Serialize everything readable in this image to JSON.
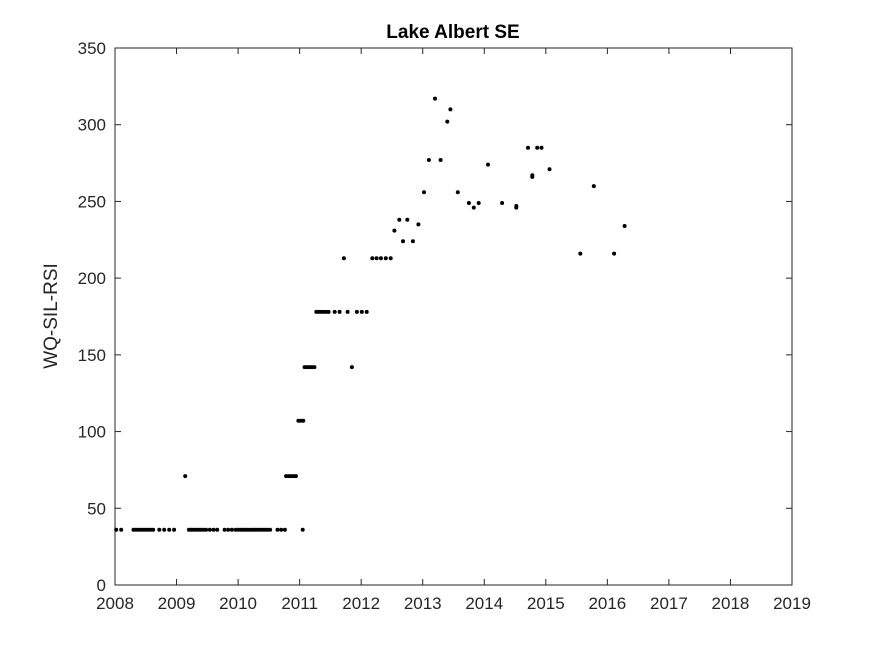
{
  "chart_data": {
    "type": "scatter",
    "title": "Lake Albert SE",
    "xlabel": "",
    "ylabel": "WQ-SIL-RSI",
    "xlim": [
      2008,
      2019
    ],
    "ylim": [
      0,
      350
    ],
    "x_ticks": [
      "2008",
      "2009",
      "2010",
      "2011",
      "2012",
      "2013",
      "2014",
      "2015",
      "2016",
      "2017",
      "2018",
      "2019"
    ],
    "y_ticks": [
      "0",
      "50",
      "100",
      "150",
      "200",
      "250",
      "300",
      "350"
    ],
    "grid": false,
    "marker_color": "#000000",
    "points": [
      [
        2008.02,
        36
      ],
      [
        2008.1,
        36
      ],
      [
        2008.3,
        36
      ],
      [
        2008.34,
        36
      ],
      [
        2008.38,
        36
      ],
      [
        2008.42,
        36
      ],
      [
        2008.46,
        36
      ],
      [
        2008.5,
        36
      ],
      [
        2008.54,
        36
      ],
      [
        2008.58,
        36
      ],
      [
        2008.62,
        36
      ],
      [
        2008.72,
        36
      ],
      [
        2008.8,
        36
      ],
      [
        2008.88,
        36
      ],
      [
        2008.96,
        36
      ],
      [
        2009.14,
        71
      ],
      [
        2009.2,
        36
      ],
      [
        2009.24,
        36
      ],
      [
        2009.28,
        36
      ],
      [
        2009.32,
        36
      ],
      [
        2009.36,
        36
      ],
      [
        2009.4,
        36
      ],
      [
        2009.44,
        36
      ],
      [
        2009.48,
        36
      ],
      [
        2009.54,
        36
      ],
      [
        2009.6,
        36
      ],
      [
        2009.66,
        36
      ],
      [
        2009.78,
        36
      ],
      [
        2009.84,
        36
      ],
      [
        2009.9,
        36
      ],
      [
        2009.96,
        36
      ],
      [
        2010.0,
        36
      ],
      [
        2010.04,
        36
      ],
      [
        2010.08,
        36
      ],
      [
        2010.12,
        36
      ],
      [
        2010.16,
        36
      ],
      [
        2010.2,
        36
      ],
      [
        2010.24,
        36
      ],
      [
        2010.28,
        36
      ],
      [
        2010.32,
        36
      ],
      [
        2010.36,
        36
      ],
      [
        2010.4,
        36
      ],
      [
        2010.44,
        36
      ],
      [
        2010.48,
        36
      ],
      [
        2010.52,
        36
      ],
      [
        2010.64,
        36
      ],
      [
        2010.7,
        36
      ],
      [
        2010.76,
        36
      ],
      [
        2010.78,
        71
      ],
      [
        2010.82,
        71
      ],
      [
        2010.86,
        71
      ],
      [
        2010.9,
        71
      ],
      [
        2010.94,
        71
      ],
      [
        2010.98,
        107
      ],
      [
        2011.02,
        107
      ],
      [
        2011.06,
        107
      ],
      [
        2011.05,
        36
      ],
      [
        2011.08,
        142
      ],
      [
        2011.12,
        142
      ],
      [
        2011.16,
        142
      ],
      [
        2011.2,
        142
      ],
      [
        2011.24,
        142
      ],
      [
        2011.27,
        178
      ],
      [
        2011.31,
        178
      ],
      [
        2011.35,
        178
      ],
      [
        2011.39,
        178
      ],
      [
        2011.43,
        178
      ],
      [
        2011.47,
        178
      ],
      [
        2011.57,
        178
      ],
      [
        2011.65,
        178
      ],
      [
        2011.72,
        213
      ],
      [
        2011.78,
        178
      ],
      [
        2011.85,
        142
      ],
      [
        2011.93,
        178
      ],
      [
        2012.01,
        178
      ],
      [
        2012.09,
        178
      ],
      [
        2012.18,
        213
      ],
      [
        2012.25,
        213
      ],
      [
        2012.32,
        213
      ],
      [
        2012.4,
        213
      ],
      [
        2012.48,
        213
      ],
      [
        2012.54,
        231
      ],
      [
        2012.62,
        238
      ],
      [
        2012.68,
        224
      ],
      [
        2012.75,
        238
      ],
      [
        2012.84,
        224
      ],
      [
        2012.93,
        235
      ],
      [
        2013.02,
        256
      ],
      [
        2013.1,
        277
      ],
      [
        2013.2,
        317
      ],
      [
        2013.29,
        277
      ],
      [
        2013.4,
        302
      ],
      [
        2013.45,
        310
      ],
      [
        2013.57,
        256
      ],
      [
        2013.75,
        249
      ],
      [
        2013.83,
        246
      ],
      [
        2013.91,
        249
      ],
      [
        2014.06,
        274
      ],
      [
        2014.29,
        249
      ],
      [
        2014.52,
        246
      ],
      [
        2014.52,
        247
      ],
      [
        2014.71,
        285
      ],
      [
        2014.78,
        266
      ],
      [
        2014.78,
        267
      ],
      [
        2014.86,
        285
      ],
      [
        2014.93,
        285
      ],
      [
        2015.06,
        271
      ],
      [
        2015.56,
        216
      ],
      [
        2015.78,
        260
      ],
      [
        2016.11,
        216
      ],
      [
        2016.28,
        234
      ]
    ]
  }
}
